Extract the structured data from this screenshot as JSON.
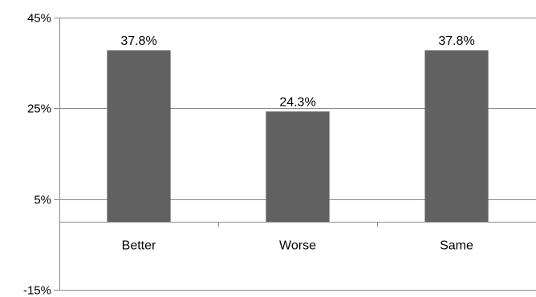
{
  "chart_data": {
    "type": "bar",
    "categories": [
      "Better",
      "Worse",
      "Same"
    ],
    "values": [
      37.8,
      24.3,
      37.8
    ],
    "data_labels": [
      "37.8%",
      "24.3%",
      "37.8%"
    ],
    "y_ticks": [
      45,
      25,
      5,
      -15
    ],
    "y_tick_labels": [
      "45%",
      "25%",
      "5%",
      "-15%"
    ],
    "ylim": [
      -15,
      45
    ],
    "grid": true,
    "legend": "none",
    "title": "",
    "xlabel": "",
    "ylabel": ""
  },
  "colors": {
    "bar": "#616161",
    "grid": "#8c8c8c",
    "axis": "#8c8c8c"
  }
}
